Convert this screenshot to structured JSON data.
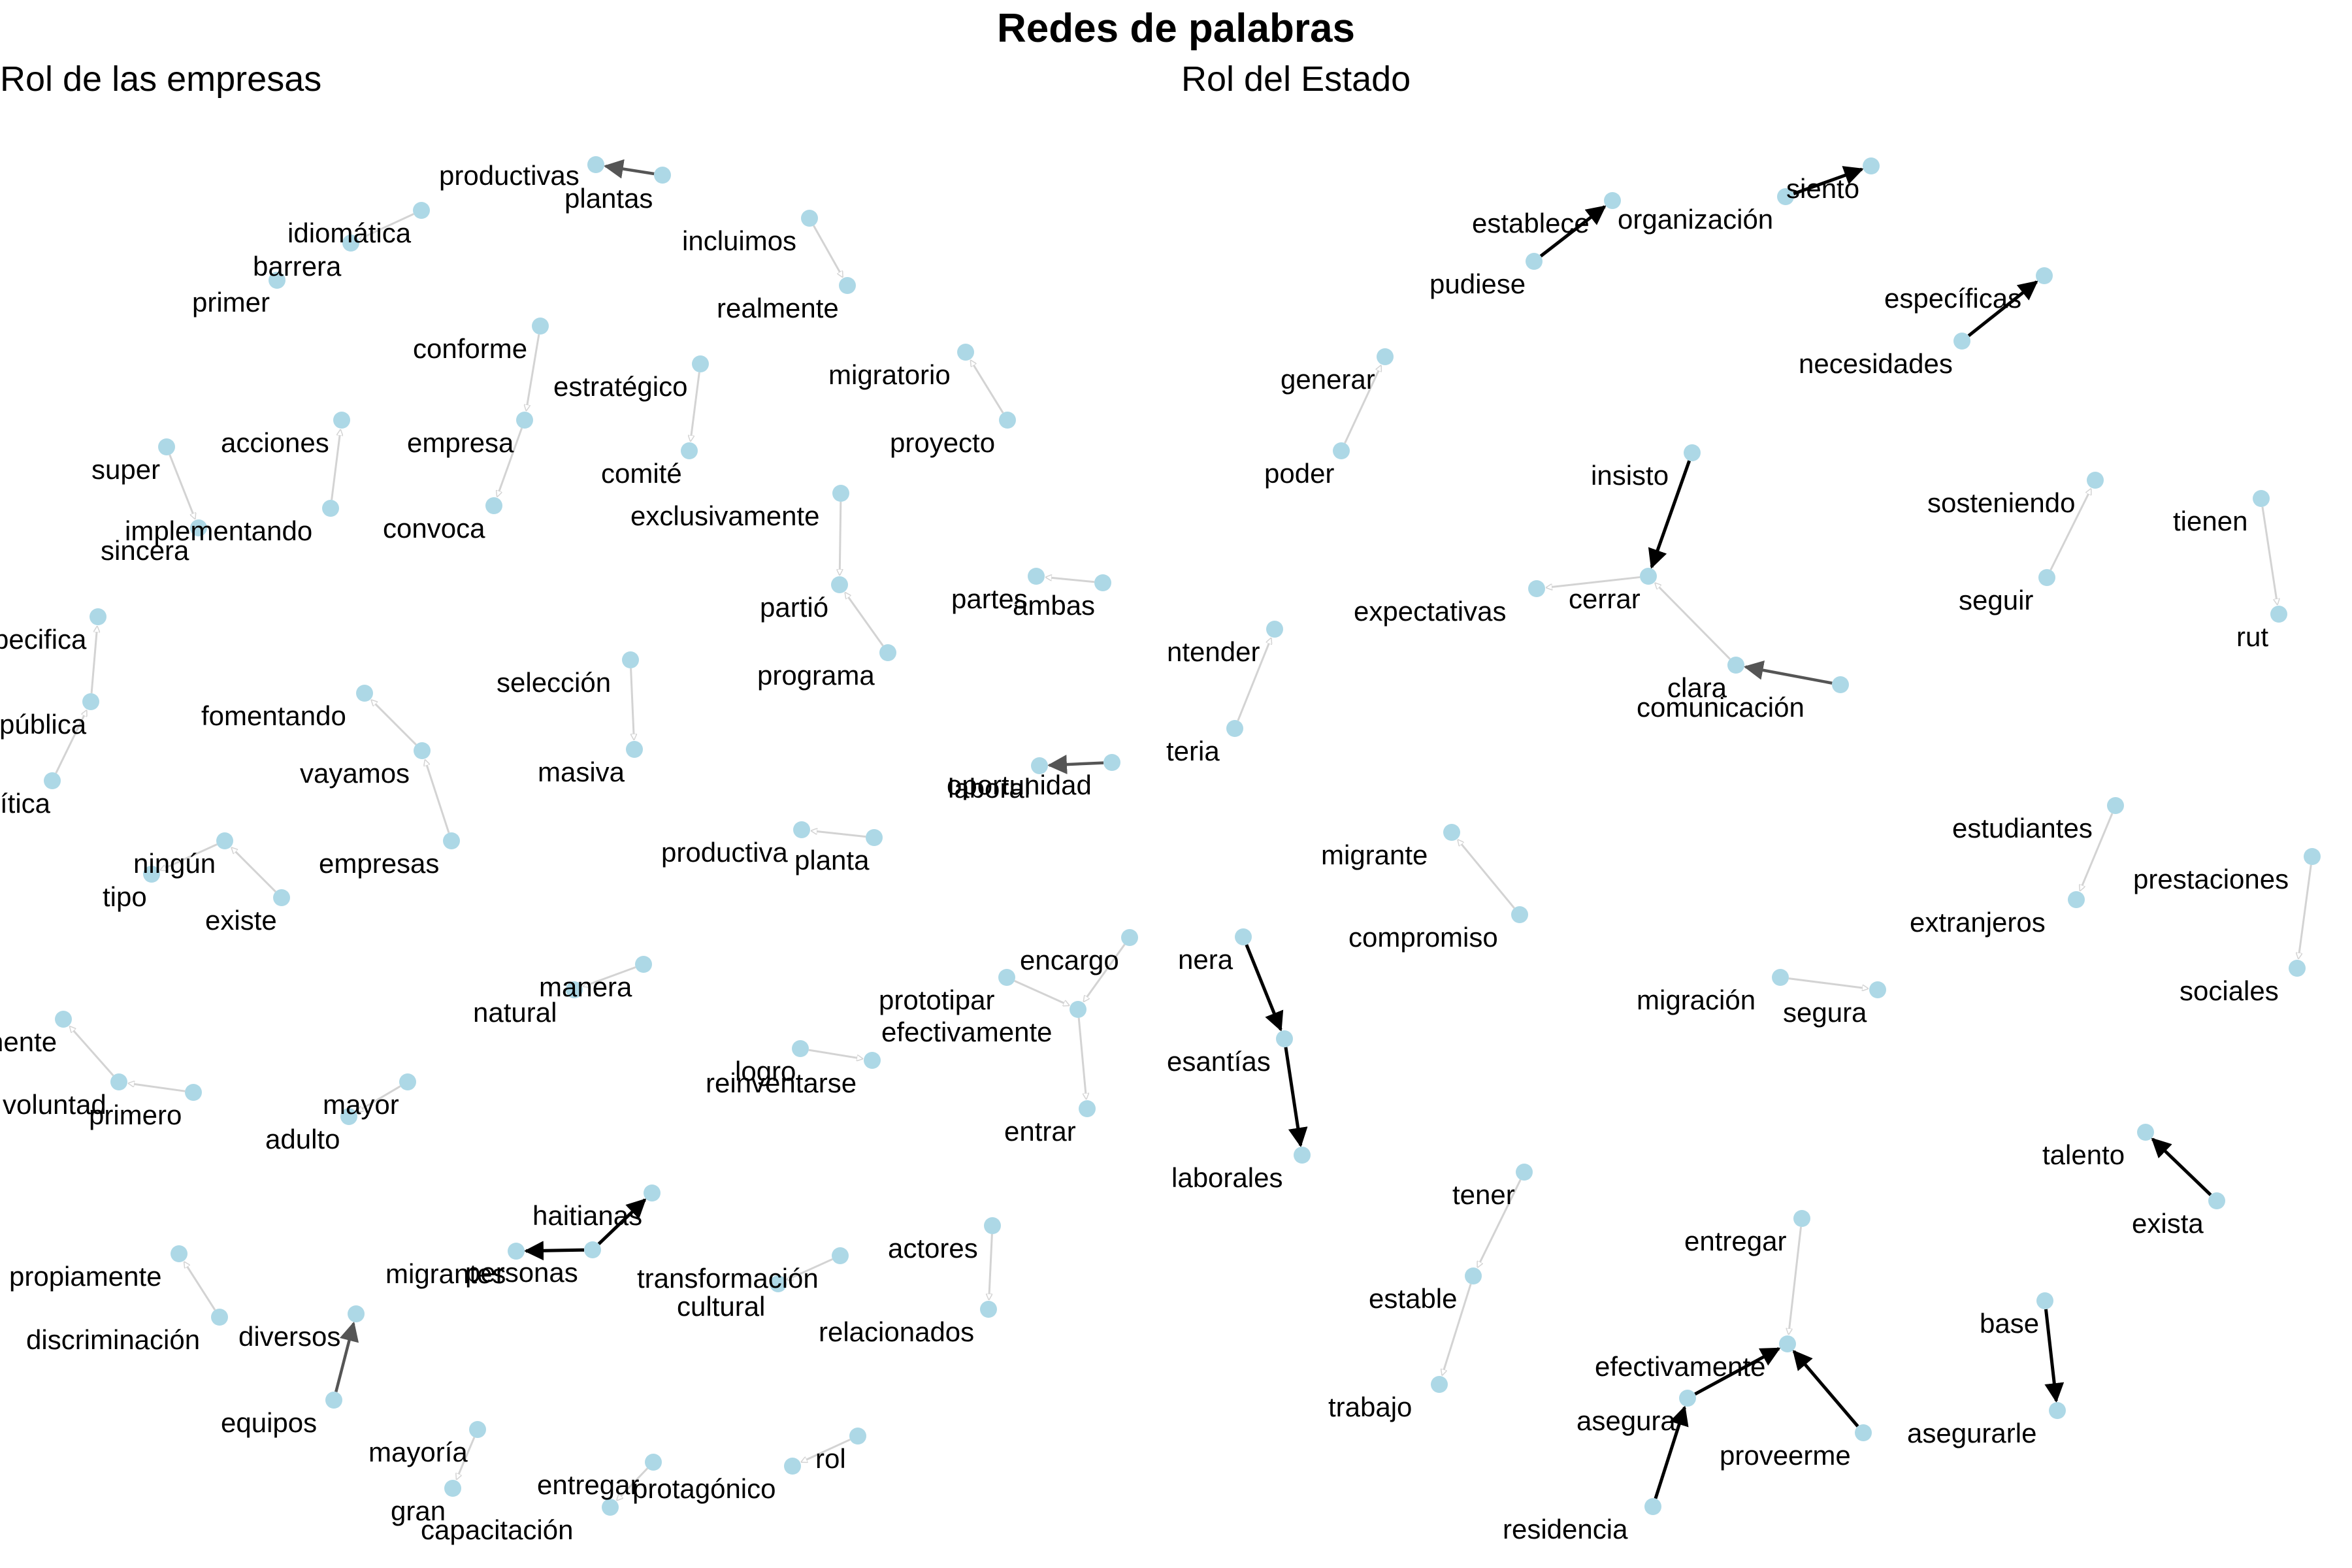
{
  "title": "Redes de palabras",
  "colors": {
    "node": "#ADD8E6",
    "edge_weak": "#D3D3D3",
    "edge_mid": "#555555",
    "edge_strong": "#000000"
  },
  "panels": [
    {
      "subtitle": "Rol de las empresas",
      "words": [
        "productivas",
        "plantas",
        "idiomática",
        "barrera",
        "primer",
        "incluimos",
        "realmente",
        "conforme",
        "empresa",
        "convoca",
        "estratégico",
        "comité",
        "migratorio",
        "proyecto",
        "super",
        "sincera",
        "acciones",
        "implementando",
        "exclusivamente",
        "partió",
        "programa",
        "partes",
        "ambas",
        "pecifica",
        "pública",
        "ítica",
        "fomentando",
        "vayamos",
        "empresas",
        "selección",
        "masiva",
        "oportunidad",
        "laboral",
        "ningún",
        "tipo",
        "existe",
        "productiva",
        "planta",
        "manera",
        "natural",
        "encargo",
        "prototipar",
        "efectivamente",
        "entrar",
        "logro",
        "reinventarse",
        "nente",
        "voluntad",
        "primero",
        "mayor",
        "adulto",
        "haitianas",
        "personas",
        "migrantes",
        "transformación",
        "cultural",
        "actores",
        "relacionados",
        "propiamente",
        "discriminación",
        "diversos",
        "equipos",
        "mayoría",
        "gran",
        "entregar",
        "capacitación",
        "protagónico",
        "rol"
      ],
      "edges": [
        {
          "from": "plantas",
          "to": "productivas",
          "strength": "mid"
        },
        {
          "from": "idiomática",
          "to": "barrera",
          "strength": "weak"
        },
        {
          "from": "incluimos",
          "to": "realmente",
          "strength": "weak"
        },
        {
          "from": "conforme",
          "to": "empresa",
          "strength": "weak"
        },
        {
          "from": "empresa",
          "to": "convoca",
          "strength": "weak"
        },
        {
          "from": "estratégico",
          "to": "comité",
          "strength": "weak"
        },
        {
          "from": "proyecto",
          "to": "migratorio",
          "strength": "weak"
        },
        {
          "from": "super",
          "to": "sincera",
          "strength": "weak"
        },
        {
          "from": "implementando",
          "to": "acciones",
          "strength": "weak"
        },
        {
          "from": "exclusivamente",
          "to": "partió",
          "strength": "weak"
        },
        {
          "from": "programa",
          "to": "partió",
          "strength": "weak"
        },
        {
          "from": "ambas",
          "to": "partes",
          "strength": "weak"
        },
        {
          "from": "pública",
          "to": "pecifica",
          "strength": "weak"
        },
        {
          "from": "ítica",
          "to": "pública",
          "strength": "weak"
        },
        {
          "from": "vayamos",
          "to": "fomentando",
          "strength": "weak"
        },
        {
          "from": "empresas",
          "to": "vayamos",
          "strength": "weak"
        },
        {
          "from": "selección",
          "to": "masiva",
          "strength": "weak"
        },
        {
          "from": "oportunidad",
          "to": "laboral",
          "strength": "mid"
        },
        {
          "from": "existe",
          "to": "ningún",
          "strength": "weak"
        },
        {
          "from": "ningún",
          "to": "tipo",
          "strength": "weak"
        },
        {
          "from": "planta",
          "to": "productiva",
          "strength": "weak"
        },
        {
          "from": "manera",
          "to": "natural",
          "strength": "weak"
        },
        {
          "from": "prototipar",
          "to": "efectivamente",
          "strength": "weak"
        },
        {
          "from": "encargo",
          "to": "efectivamente",
          "strength": "weak"
        },
        {
          "from": "efectivamente",
          "to": "entrar",
          "strength": "weak"
        },
        {
          "from": "logro",
          "to": "reinventarse",
          "strength": "weak"
        },
        {
          "from": "voluntad",
          "to": "nente",
          "strength": "weak"
        },
        {
          "from": "primero",
          "to": "voluntad",
          "strength": "weak"
        },
        {
          "from": "mayor",
          "to": "adulto",
          "strength": "weak"
        },
        {
          "from": "personas",
          "to": "haitianas",
          "strength": "strong"
        },
        {
          "from": "personas",
          "to": "migrantes",
          "strength": "strong"
        },
        {
          "from": "transformación",
          "to": "cultural",
          "strength": "weak"
        },
        {
          "from": "actores",
          "to": "relacionados",
          "strength": "weak"
        },
        {
          "from": "discriminación",
          "to": "propiamente",
          "strength": "weak"
        },
        {
          "from": "equipos",
          "to": "diversos",
          "strength": "mid"
        },
        {
          "from": "mayoría",
          "to": "gran",
          "strength": "weak"
        },
        {
          "from": "entregar",
          "to": "capacitación",
          "strength": "weak"
        },
        {
          "from": "rol",
          "to": "protagónico",
          "strength": "weak"
        }
      ]
    },
    {
      "subtitle": "Rol del Estado",
      "words": [
        "pudiese",
        "establece",
        "organización",
        "siento",
        "específicas",
        "necesidades",
        "generar",
        "poder",
        "insisto",
        "cerrar",
        "expectativas",
        "clara",
        "comunicación",
        "sosteniendo",
        "seguir",
        "tienen",
        "rut",
        "ntender",
        "teria",
        "migrante",
        "compromiso",
        "estudiantes",
        "extranjeros",
        "prestaciones",
        "sociales",
        "nera",
        "esantías",
        "laborales",
        "migración",
        "segura",
        "talento",
        "exista",
        "tener",
        "estable",
        "trabajo",
        "entregar",
        "efectivamente",
        "asegura",
        "proveerme",
        "residencia",
        "base",
        "asegurarle"
      ],
      "edges": [
        {
          "from": "pudiese",
          "to": "establece",
          "strength": "strong"
        },
        {
          "from": "organización",
          "to": "siento",
          "strength": "strong"
        },
        {
          "from": "necesidades",
          "to": "específicas",
          "strength": "strong"
        },
        {
          "from": "poder",
          "to": "generar",
          "strength": "weak"
        },
        {
          "from": "insisto",
          "to": "cerrar",
          "strength": "strong"
        },
        {
          "from": "cerrar",
          "to": "expectativas",
          "strength": "weak"
        },
        {
          "from": "clara",
          "to": "cerrar",
          "strength": "weak"
        },
        {
          "from": "comunicación",
          "to": "clara",
          "strength": "mid"
        },
        {
          "from": "seguir",
          "to": "sosteniendo",
          "strength": "weak"
        },
        {
          "from": "tienen",
          "to": "rut",
          "strength": "weak"
        },
        {
          "from": "teria",
          "to": "ntender",
          "strength": "weak"
        },
        {
          "from": "compromiso",
          "to": "migrante",
          "strength": "weak"
        },
        {
          "from": "estudiantes",
          "to": "extranjeros",
          "strength": "weak"
        },
        {
          "from": "prestaciones",
          "to": "sociales",
          "strength": "weak"
        },
        {
          "from": "nera",
          "to": "esantías",
          "strength": "strong"
        },
        {
          "from": "esantías",
          "to": "laborales",
          "strength": "strong"
        },
        {
          "from": "migración",
          "to": "segura",
          "strength": "weak"
        },
        {
          "from": "exista",
          "to": "talento",
          "strength": "strong"
        },
        {
          "from": "tener",
          "to": "estable",
          "strength": "weak"
        },
        {
          "from": "estable",
          "to": "trabajo",
          "strength": "weak"
        },
        {
          "from": "entregar",
          "to": "efectivamente",
          "strength": "weak"
        },
        {
          "from": "asegura",
          "to": "efectivamente",
          "strength": "strong"
        },
        {
          "from": "proveerme",
          "to": "efectivamente",
          "strength": "strong"
        },
        {
          "from": "residencia",
          "to": "asegura",
          "strength": "strong"
        },
        {
          "from": "base",
          "to": "asegurarle",
          "strength": "strong"
        }
      ]
    }
  ]
}
